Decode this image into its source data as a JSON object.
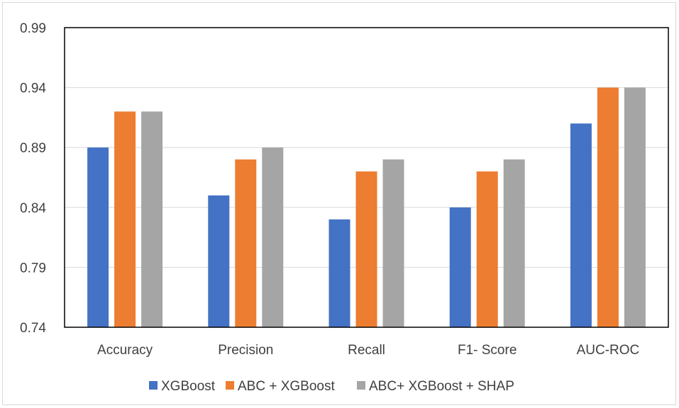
{
  "chart_data": {
    "type": "bar",
    "categories": [
      "Accuracy",
      "Precision",
      "Recall",
      "F1- Score",
      "AUC-ROC"
    ],
    "series": [
      {
        "name": "XGBoost",
        "color": "#4472c4",
        "values": [
          0.89,
          0.85,
          0.83,
          0.84,
          0.91
        ]
      },
      {
        "name": "ABC + XGBoost",
        "color": "#ed7d31",
        "values": [
          0.92,
          0.88,
          0.87,
          0.87,
          0.94
        ]
      },
      {
        "name": "ABC+ XGBoost + SHAP",
        "color": "#a5a5a5",
        "values": [
          0.92,
          0.89,
          0.88,
          0.88,
          0.94
        ]
      }
    ],
    "yticks": [
      "0.74",
      "0.79",
      "0.84",
      "0.89",
      "0.94",
      "0.99"
    ],
    "ylim": [
      0.74,
      0.99
    ],
    "grid": true,
    "legend_position": "bottom"
  }
}
